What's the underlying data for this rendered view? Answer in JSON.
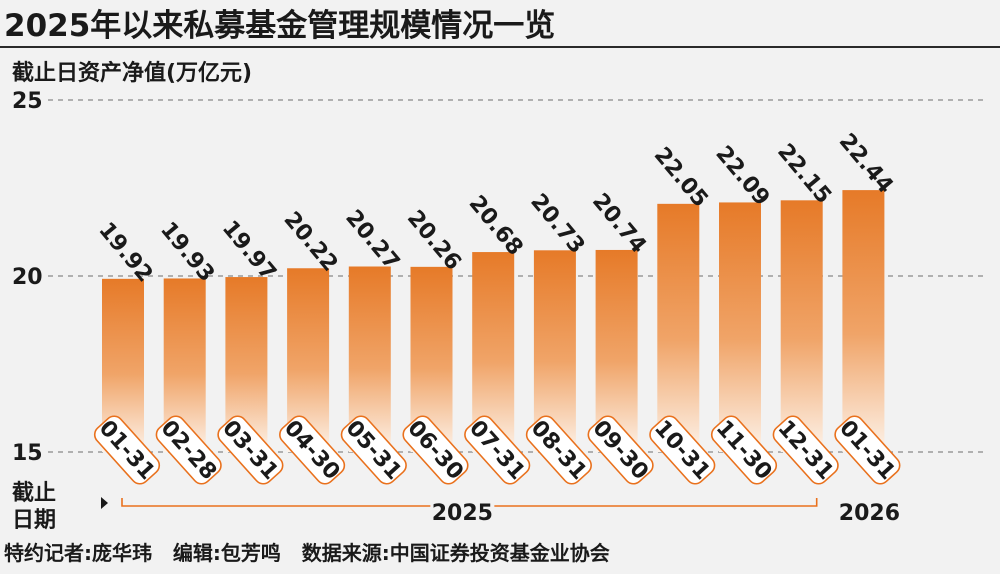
{
  "chart_data": {
    "type": "bar",
    "title": "2025年以来私募基金管理规模情况一览",
    "ylabel": "截止日资产净值(万亿元)",
    "xlabel": "截止日期",
    "ylim": [
      15,
      25
    ],
    "yticks": [
      "25",
      "20",
      "15"
    ],
    "grid": true,
    "categories": [
      "01-31",
      "02-28",
      "03-31",
      "04-30",
      "05-31",
      "06-30",
      "07-31",
      "08-31",
      "09-30",
      "10-31",
      "11-30",
      "12-31",
      "01-31"
    ],
    "values": [
      19.92,
      19.93,
      19.97,
      20.22,
      20.27,
      20.26,
      20.68,
      20.73,
      20.74,
      22.05,
      22.09,
      22.15,
      22.44
    ],
    "value_labels": [
      "19.92",
      "19.93",
      "19.97",
      "20.22",
      "20.27",
      "20.26",
      "20.68",
      "20.73",
      "20.74",
      "22.05",
      "22.09",
      "22.15",
      "22.44"
    ],
    "year_groups": [
      {
        "label": "2025",
        "first": 0,
        "last": 11
      },
      {
        "label": "2026",
        "first": 12,
        "last": 12
      }
    ]
  },
  "footer": {
    "credits": "特约记者:庞华玮   编辑:包芳鸣   数据来源:中国证券投资基金业协会"
  },
  "colors": {
    "bar_top": "#e67a28",
    "bar_bottom": "#fdf0e6",
    "tag_border": "#e9711d",
    "text": "#1a1a1a",
    "grid": "#888888",
    "bracket": "#e9711d"
  }
}
